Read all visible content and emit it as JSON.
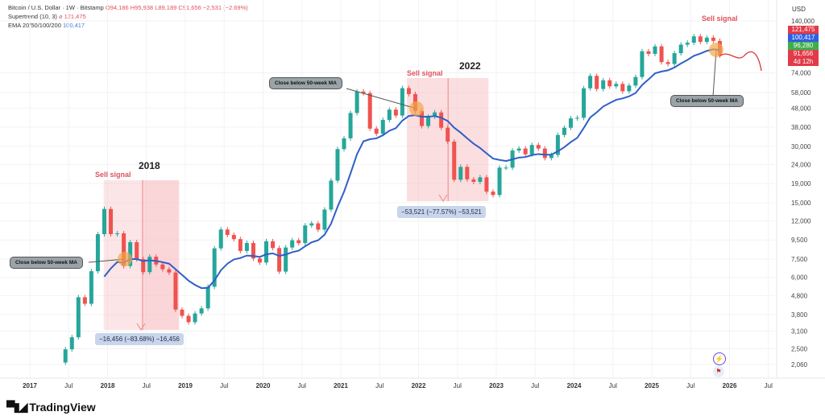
{
  "header": {
    "symbol": "Bitcoin / U.S. Dollar · 1W · Bitstamp",
    "open": "O94,186",
    "high": "H95,938",
    "low": "L89,189",
    "close": "C91,656",
    "change": "−2,531 (−2.69%)",
    "supertrend_label": "Supertrend (10, 3)",
    "supertrend_value": "⌀ 121,475",
    "ema_label": "EMA 20/50/100/200",
    "ema_value": "100,417"
  },
  "price_tags": [
    {
      "value": "121,475",
      "color": "#e23a48"
    },
    {
      "value": "100,417",
      "color": "#2f5fe0"
    },
    {
      "value": "96,280",
      "color": "#3fae4a"
    },
    {
      "value": "91,656",
      "color": "#e23a48"
    },
    {
      "value": "4d 12h",
      "color": "#e23a48"
    }
  ],
  "annotations": {
    "sell_signal": "Sell signal",
    "close_below": "Close below 50-week MA",
    "year_2018": "2018",
    "year_2022": "2022",
    "measure_2018": "−16,456 (−83.68%) −16,456",
    "measure_2022": "−53,521 (−77.57%) −53,521"
  },
  "branding": "TradingView",
  "colors": {
    "up": "#26a69a",
    "down": "#ef5350",
    "ema": "#2f5fc8",
    "sell_zone": "#f7b5b9",
    "supertrend_up": "#d9f2dc",
    "supertrend_down": "#f9d3d5",
    "callout_circle": "#f5a64a"
  },
  "chart_data": {
    "type": "candlestick",
    "scale": "log",
    "currency": "USD",
    "grid": true,
    "y_ticks": [
      140000,
      74000,
      58000,
      48000,
      38000,
      30000,
      24000,
      19000,
      15000,
      12000,
      9500,
      7500,
      6000,
      4800,
      3800,
      3100,
      2500,
      2060
    ],
    "y_tick_labels": [
      "140,000",
      "74,000",
      "58,000",
      "48,000",
      "38,000",
      "30,000",
      "24,000",
      "19,000",
      "15,000",
      "12,000",
      "9,500",
      "7,500",
      "6,000",
      "4,800",
      "3,800",
      "3,100",
      "2,500",
      "2,060"
    ],
    "x_ticks": [
      {
        "label": "2017",
        "t": 2017
      },
      {
        "label": "Jul",
        "t": 2017.5
      },
      {
        "label": "2018",
        "t": 2018
      },
      {
        "label": "Jul",
        "t": 2018.5
      },
      {
        "label": "2019",
        "t": 2019
      },
      {
        "label": "Jul",
        "t": 2019.5
      },
      {
        "label": "2020",
        "t": 2020
      },
      {
        "label": "Jul",
        "t": 2020.5
      },
      {
        "label": "2021",
        "t": 2021
      },
      {
        "label": "Jul",
        "t": 2021.5
      },
      {
        "label": "2022",
        "t": 2022
      },
      {
        "label": "Jul",
        "t": 2022.5
      },
      {
        "label": "2023",
        "t": 2023
      },
      {
        "label": "Jul",
        "t": 2023.5
      },
      {
        "label": "2024",
        "t": 2024
      },
      {
        "label": "Jul",
        "t": 2024.5
      },
      {
        "label": "2025",
        "t": 2025
      },
      {
        "label": "Jul",
        "t": 2025.5
      },
      {
        "label": "2026",
        "t": 2026
      },
      {
        "label": "Jul",
        "t": 2026.5
      }
    ],
    "start": "2017-06",
    "monthly_close": [
      2480,
      2875,
      4700,
      4340,
      6470,
      10200,
      13900,
      10200,
      10300,
      6900,
      9240,
      7500,
      6400,
      7730,
      7030,
      6630,
      6370,
      4040,
      3740,
      3460,
      3850,
      4100,
      5350,
      8570,
      10800,
      10100,
      9600,
      8300,
      9150,
      7570,
      7200,
      9350,
      8600,
      6440,
      8660,
      9460,
      9140,
      11350,
      11650,
      10780,
      13800,
      19700,
      29000,
      33100,
      45200,
      58800,
      57700,
      37300,
      35000,
      41500,
      47100,
      43800,
      61300,
      57000,
      46300,
      38500,
      43200,
      45500,
      37700,
      31800,
      19900,
      23300,
      20000,
      19400,
      20500,
      17200,
      16500,
      23100,
      23100,
      28500,
      29200,
      27200,
      30500,
      29200,
      26000,
      27000,
      34500,
      37700,
      42300,
      42600,
      61200,
      71300,
      60700,
      67500,
      62700,
      64600,
      59000,
      63300,
      70300,
      96400,
      93400,
      102400,
      84400,
      82500,
      94200,
      104600,
      107100,
      115800,
      108200,
      114000,
      109500,
      91656
    ]
  }
}
